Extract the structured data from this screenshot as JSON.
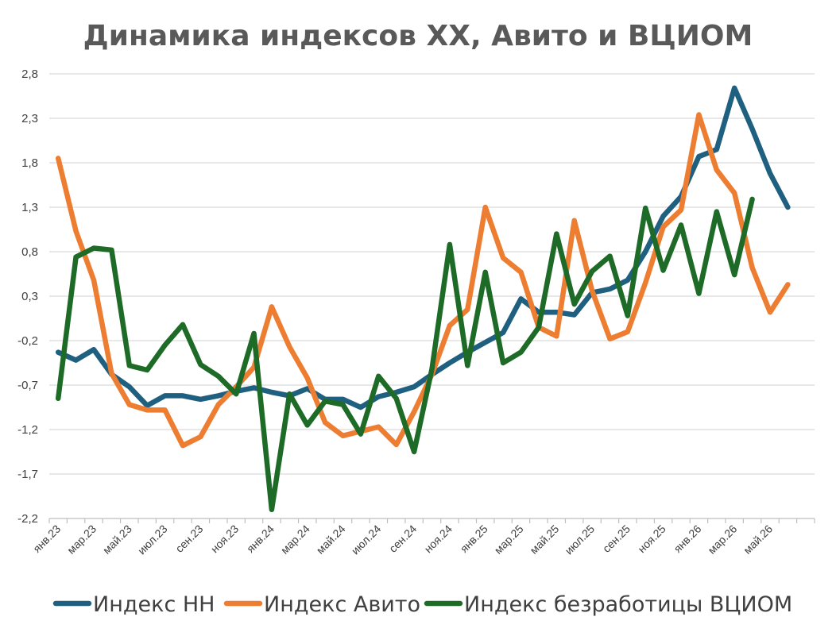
{
  "chart_data": {
    "type": "line",
    "title": "Динамика индексов ХХ, Авито и ВЦИОМ",
    "xlabel": "",
    "ylabel": "",
    "ylim": [
      -2.2,
      2.8
    ],
    "y_ticks": [
      "2,8",
      "2,3",
      "1,8",
      "1,3",
      "0,8",
      "0,3",
      "-0,2",
      "-0,7",
      "-1,2",
      "-1,7",
      "-2,2"
    ],
    "y_tick_values": [
      2.8,
      2.3,
      1.8,
      1.3,
      0.8,
      0.3,
      -0.2,
      -0.7,
      -1.2,
      -1.7,
      -2.2
    ],
    "x_tick_labels": [
      "янв.23",
      "мар.23",
      "май.23",
      "июл.23",
      "сен.23",
      "ноя.23",
      "янв.24",
      "мар.24",
      "май.24",
      "июл.24",
      "сен.24",
      "ноя.24",
      "янв.25",
      "мар.25",
      "май.25",
      "июл.25",
      "сен.25",
      "ноя.25",
      "янв.26",
      "мар.26",
      "май.26"
    ],
    "n_months": 43,
    "grid": true,
    "legend_position": "bottom",
    "series": [
      {
        "name": "Индекс НН",
        "color": "#1f5f7f",
        "values": [
          -0.33,
          -0.42,
          -0.3,
          -0.58,
          -0.72,
          -0.93,
          -0.82,
          -0.82,
          -0.86,
          -0.82,
          -0.77,
          -0.73,
          -0.78,
          -0.82,
          -0.74,
          -0.86,
          -0.86,
          -0.95,
          -0.83,
          -0.78,
          -0.72,
          -0.58,
          -0.45,
          -0.33,
          -0.22,
          -0.11,
          0.27,
          0.12,
          0.12,
          0.09,
          0.34,
          0.38,
          0.48,
          0.8,
          1.2,
          1.42,
          1.87,
          1.95,
          2.64,
          2.18,
          1.68,
          1.3
        ]
      },
      {
        "name": "Индекс Авито",
        "color": "#ed7d31",
        "values": [
          1.85,
          1.03,
          0.48,
          -0.57,
          -0.92,
          -0.98,
          -0.98,
          -1.38,
          -1.28,
          -0.92,
          -0.72,
          -0.5,
          0.18,
          -0.27,
          -0.62,
          -1.12,
          -1.27,
          -1.22,
          -1.17,
          -1.37,
          -1.0,
          -0.58,
          -0.03,
          0.15,
          1.3,
          0.73,
          0.57,
          -0.05,
          -0.15,
          1.15,
          0.36,
          -0.18,
          -0.1,
          0.45,
          1.08,
          1.27,
          2.34,
          1.72,
          1.46,
          0.62,
          0.12,
          0.43
        ]
      },
      {
        "name": "Индекс безработицы ВЦИОМ",
        "color": "#1e6b28",
        "values": [
          -0.85,
          0.74,
          0.84,
          0.82,
          -0.48,
          -0.53,
          -0.25,
          -0.02,
          -0.47,
          -0.6,
          -0.8,
          -0.12,
          -2.1,
          -0.8,
          -1.15,
          -0.88,
          -0.92,
          -1.25,
          -0.6,
          -0.85,
          -1.45,
          -0.52,
          0.88,
          -0.48,
          0.57,
          -0.45,
          -0.33,
          -0.05,
          1.0,
          0.21,
          0.58,
          0.75,
          0.08,
          1.29,
          0.59,
          1.1,
          0.33,
          1.25,
          0.54,
          1.39
        ]
      }
    ]
  }
}
